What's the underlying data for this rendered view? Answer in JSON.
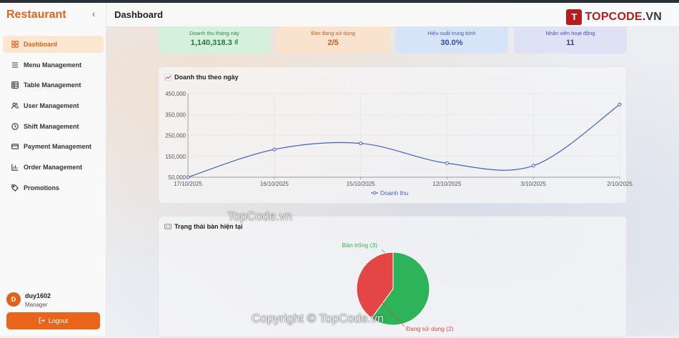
{
  "app": {
    "brand": "Restaurant"
  },
  "header": {
    "title": "Dashboard"
  },
  "watermark": {
    "logo_prefix": "T",
    "logo_brand": "TOPCODE",
    "logo_suffix": ".VN",
    "text1": "TopCode.vn",
    "text2": "Copyright © TopCode.vn"
  },
  "sidebar": {
    "items": [
      {
        "label": "Dashboard",
        "icon": "dashboard-icon",
        "active": true
      },
      {
        "label": "Menu Management",
        "icon": "menu-list-icon"
      },
      {
        "label": "Table Management",
        "icon": "table-icon"
      },
      {
        "label": "User Management",
        "icon": "users-icon"
      },
      {
        "label": "Shift Management",
        "icon": "clock-icon"
      },
      {
        "label": "Payment Management",
        "icon": "credit-card-icon"
      },
      {
        "label": "Order Management",
        "icon": "bar-chart-icon"
      },
      {
        "label": "Promotions",
        "icon": "tag-icon"
      }
    ],
    "user": {
      "initial": "D",
      "name": "duy1602",
      "role": "Manager"
    },
    "logout_label": "Logout"
  },
  "stats": [
    {
      "label": "Doanh thu tháng này",
      "value": "1,140,318.3 ₫",
      "color": "#1f7a3c"
    },
    {
      "label": "Bàn đang sử dụng",
      "value": "2/5",
      "color": "#c2601e"
    },
    {
      "label": "Hiệu suất trung bình",
      "value": "30.0%",
      "color": "#2d50a8"
    },
    {
      "label": "Nhân viên hoạt động",
      "value": "11",
      "color": "#3a3fa0"
    }
  ],
  "revenue_panel": {
    "title": "Doanh thu theo ngày"
  },
  "table_panel": {
    "title": "Trạng thái bàn hiện tại"
  },
  "chart_data": [
    {
      "type": "line",
      "title": "Doanh thu theo ngày",
      "x": [
        "17/10/2025",
        "16/10/2025",
        "15/10/2025",
        "12/10/2025",
        "3/10/2025",
        "2/10/2025"
      ],
      "y_ticks": [
        "50,000",
        "150,000",
        "250,000",
        "350,000",
        "450,000"
      ],
      "ylim": [
        50000,
        450000
      ],
      "series": [
        {
          "name": "Doanh thu",
          "color": "#4060c8",
          "values": [
            50000,
            183000,
            212000,
            117000,
            105000,
            398000
          ]
        }
      ],
      "legend": "bottom-center",
      "grid": true
    },
    {
      "type": "pie",
      "title": "Trạng thái bàn hiện tại",
      "slices": [
        {
          "label": "Bàn trống (3)",
          "value": 3,
          "color": "#2db35a"
        },
        {
          "label": "Đang sử dụng (2)",
          "value": 2,
          "color": "#e44646"
        }
      ]
    }
  ]
}
